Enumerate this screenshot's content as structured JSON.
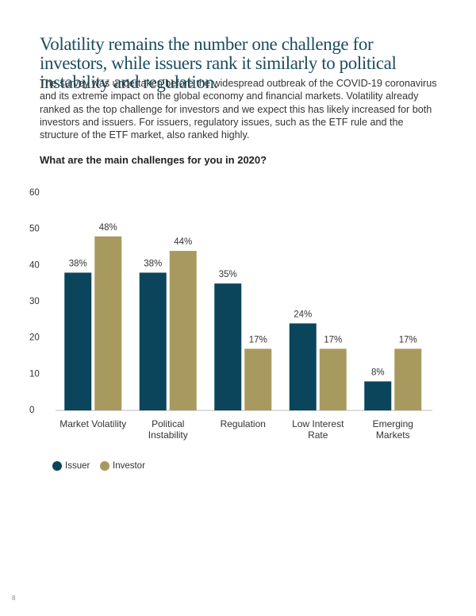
{
  "heading": "Volatility remains the number one challenge for investors, while issuers rank it similarly to political instability and regulation.",
  "body": "The survey was undertaken before the widespread outbreak of the COVID-19 coronavirus and its extreme impact on the global economy and financial markets. Volatility already ranked as the top challenge for investors and we expect this has likely increased for both investors and issuers. For issuers, regulatory issues, such as the ETF rule and the structure of the ETF market, also ranked highly.",
  "page_number": "8",
  "chart_data": {
    "type": "bar",
    "title": "What are the main challenges for you in 2020?",
    "categories": [
      "Market Volatility",
      "Political Instability",
      "Regulation",
      "Low Interest Rate",
      "Emerging Markets"
    ],
    "series": [
      {
        "name": "Issuer",
        "color": "#0b455c",
        "values": [
          38,
          38,
          35,
          24,
          8
        ],
        "value_labels": [
          "38%",
          "38%",
          "35%",
          "24%",
          "8%"
        ]
      },
      {
        "name": "Investor",
        "color": "#a89a5e",
        "values": [
          48,
          44,
          17,
          17,
          17
        ],
        "value_labels": [
          "48%",
          "44%",
          "17%",
          "17%",
          "17%"
        ]
      }
    ],
    "ylim": [
      0,
      60
    ],
    "yticks": [
      0,
      10,
      20,
      30,
      40,
      50,
      60
    ],
    "grid": false
  }
}
